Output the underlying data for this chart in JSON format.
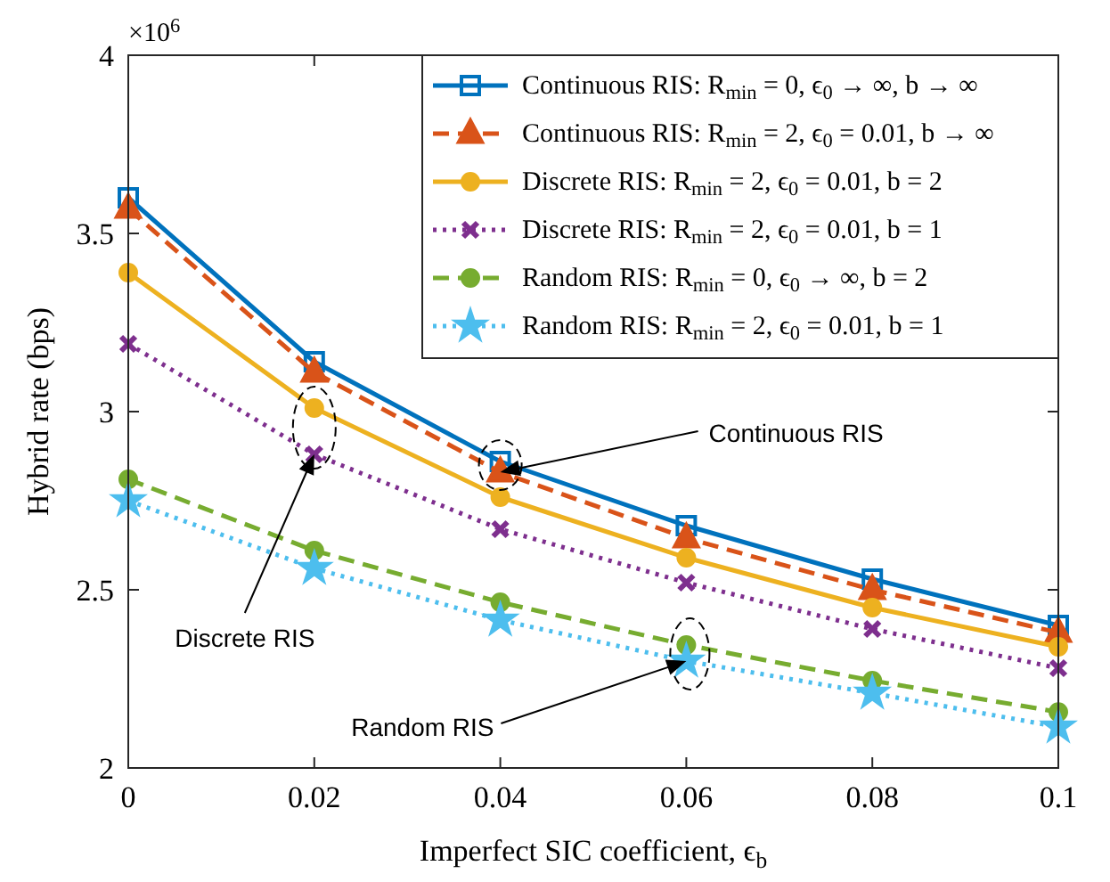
{
  "chart_data": {
    "type": "line",
    "xlabel": "Imperfect SIC coefficient, ϵ$_{b}$",
    "ylabel": "Hybrid rate (bps)",
    "x": [
      0,
      0.02,
      0.04,
      0.06,
      0.08,
      0.1
    ],
    "xlim": [
      0,
      0.1
    ],
    "xticks": [
      0,
      0.02,
      0.04,
      0.06,
      0.08,
      0.1
    ],
    "ylim": [
      2,
      4
    ],
    "yticks": [
      2,
      2.5,
      3,
      3.5,
      4
    ],
    "grid": false,
    "legend": "top right",
    "series": [
      {
        "name": "Continuous RIS: R$_{min}$ = 0, ϵ$_{0}$ → ∞, b → ∞",
        "color": "#0072bd",
        "marker": "square",
        "line_style": "solid",
        "values": [
          3.6,
          3.14,
          2.86,
          2.68,
          2.53,
          2.4
        ]
      },
      {
        "name": "Continuous RIS: R$_{min}$ = 2, ϵ$_{0}$ = 0.01, b → ∞",
        "color": "#d95319",
        "marker": "triangle",
        "line_style": "dashed",
        "values": [
          3.57,
          3.11,
          2.83,
          2.645,
          2.5,
          2.38
        ]
      },
      {
        "name": "Discrete RIS: R$_{min}$ = 2, ϵ$_{0}$ = 0.01, b = 2",
        "color": "#edb120",
        "marker": "circle",
        "line_style": "solid",
        "values": [
          3.39,
          3.01,
          2.76,
          2.59,
          2.45,
          2.34
        ]
      },
      {
        "name": "Discrete RIS: R$_{min}$ = 2, ϵ$_{0}$ = 0.01, b = 1",
        "color": "#7e2f8e",
        "marker": "cross",
        "line_style": "dotted",
        "values": [
          3.19,
          2.88,
          2.67,
          2.52,
          2.39,
          2.28
        ]
      },
      {
        "name": "Random RIS: R$_{min}$ = 0, ϵ$_{0}$ → ∞, b = 2",
        "color": "#77ac30",
        "marker": "circle",
        "line_style": "dashed",
        "values": [
          2.81,
          2.61,
          2.465,
          2.345,
          2.245,
          2.157
        ]
      },
      {
        "name": "Random RIS: R$_{min}$ = 2, ϵ$_{0}$ = 0.01, b = 1",
        "color": "#4dbeee",
        "marker": "star",
        "line_style": "dotted",
        "values": [
          2.75,
          2.56,
          2.415,
          2.3,
          2.21,
          2.115
        ]
      }
    ],
    "annotations": [
      "×10$^{6}$",
      {
        "text": "Continuous RIS",
        "x": 0.04,
        "y": 2.83
      },
      {
        "text": "Discrete RIS",
        "x": 0.02,
        "y": 2.88
      },
      {
        "text": "Random RIS",
        "x": 0.06,
        "y": 2.3
      }
    ]
  }
}
